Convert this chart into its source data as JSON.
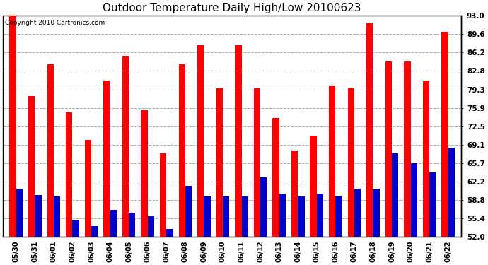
{
  "title": "Outdoor Temperature Daily High/Low 20100623",
  "copyright": "Copyright 2010 Cartronics.com",
  "dates": [
    "05/30",
    "05/31",
    "06/01",
    "06/02",
    "06/03",
    "06/04",
    "06/05",
    "06/06",
    "06/07",
    "06/08",
    "06/09",
    "06/10",
    "06/11",
    "06/12",
    "06/13",
    "06/14",
    "06/15",
    "06/16",
    "06/17",
    "06/18",
    "06/19",
    "06/20",
    "06/21",
    "06/22"
  ],
  "highs": [
    93.0,
    78.0,
    84.0,
    75.0,
    70.0,
    81.0,
    85.5,
    75.5,
    67.5,
    84.0,
    87.5,
    79.5,
    87.5,
    79.5,
    74.0,
    68.0,
    70.8,
    80.0,
    79.5,
    91.5,
    84.5,
    84.5,
    81.0,
    90.0
  ],
  "lows": [
    61.0,
    59.8,
    59.5,
    55.0,
    54.0,
    57.0,
    56.5,
    55.8,
    53.5,
    61.5,
    59.5,
    59.5,
    59.5,
    63.0,
    60.0,
    59.5,
    60.0,
    59.5,
    61.0,
    61.0,
    67.5,
    65.7,
    64.0,
    68.5
  ],
  "high_color": "#ff0000",
  "low_color": "#0000cc",
  "ymin": 52.0,
  "ymax": 93.0,
  "yticks": [
    52.0,
    55.4,
    58.8,
    62.2,
    65.7,
    69.1,
    72.5,
    75.9,
    79.3,
    82.8,
    86.2,
    89.6,
    93.0
  ],
  "grid_color": "#aaaaaa",
  "bg_color": "#ffffff",
  "bar_width": 0.35,
  "title_fontsize": 11,
  "copyright_fontsize": 6.5,
  "tick_fontsize": 7,
  "ytick_fontsize": 7.5
}
